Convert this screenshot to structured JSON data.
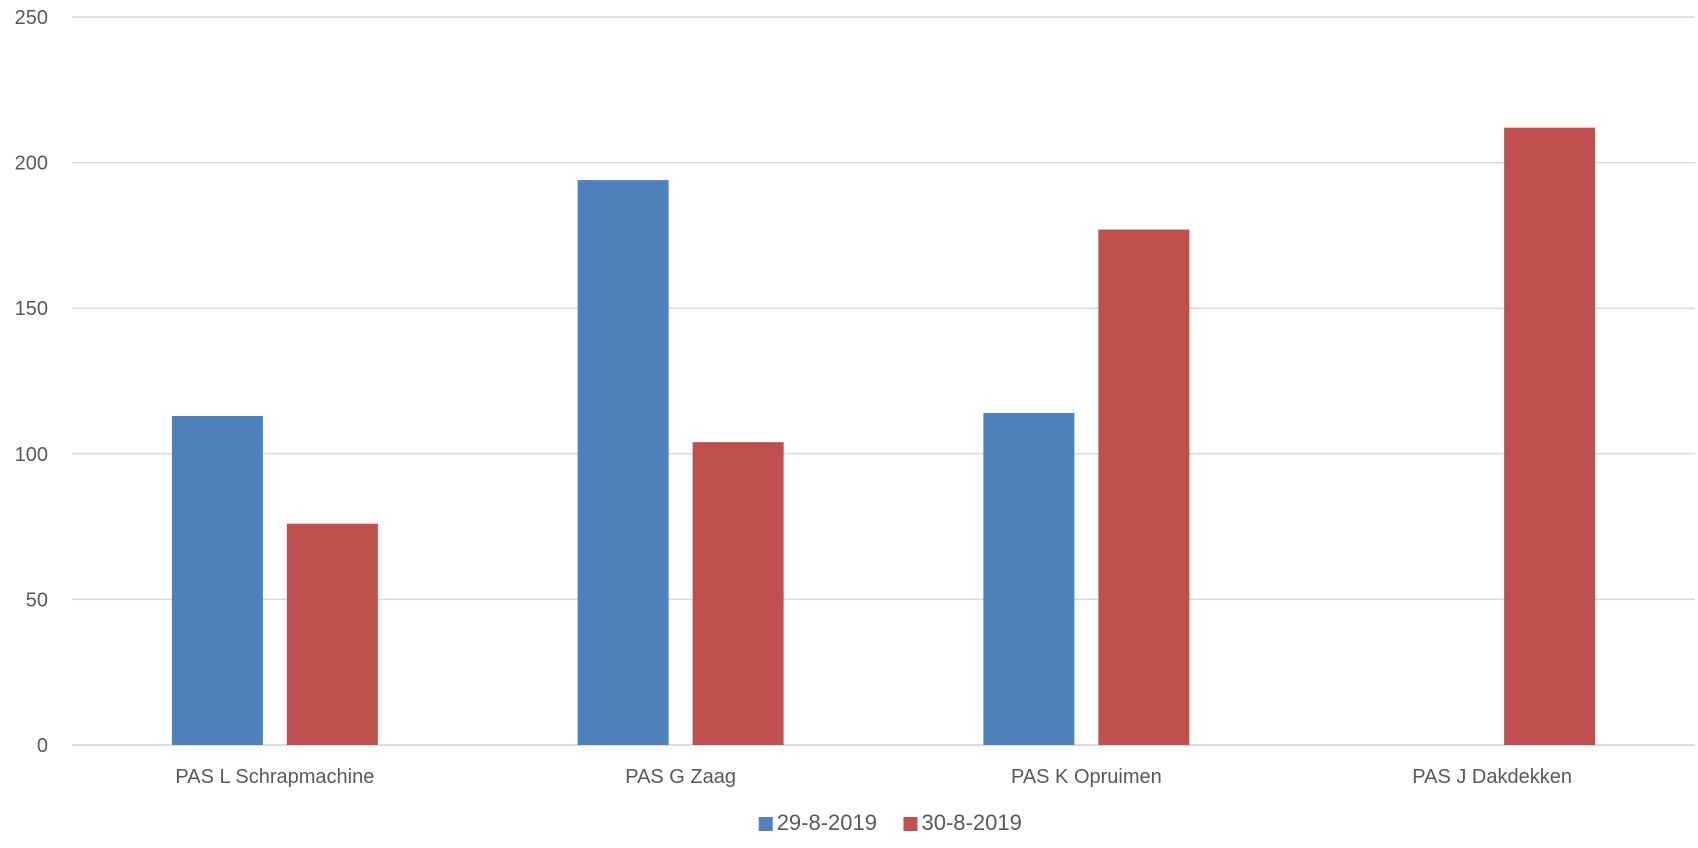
{
  "chart_data": {
    "type": "bar",
    "categories": [
      "PAS L Schrapmachine",
      "PAS G Zaag",
      "PAS K Opruimen",
      "PAS J Dakdekken"
    ],
    "series": [
      {
        "name": "29-8-2019",
        "color": "#4f81bd",
        "values": [
          113,
          194,
          114,
          null
        ]
      },
      {
        "name": "30-8-2019",
        "color": "#c0504d",
        "values": [
          76,
          104,
          177,
          212
        ]
      }
    ],
    "yticks": [
      0,
      50,
      100,
      150,
      200,
      250
    ],
    "ylim": [
      0,
      250
    ],
    "xlabel": "",
    "ylabel": "",
    "title": "",
    "grid": true,
    "legend_position": "bottom-center"
  }
}
